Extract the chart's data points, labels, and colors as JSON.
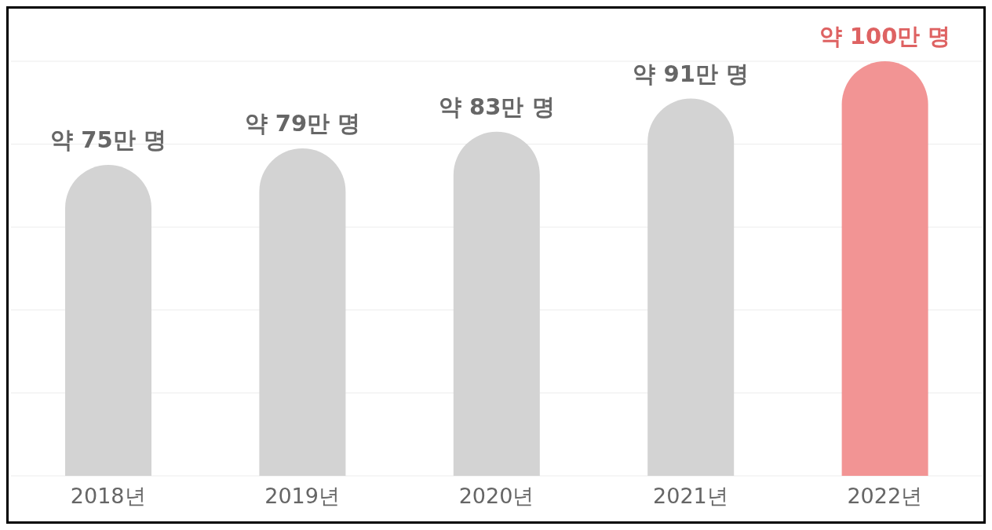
{
  "chart_data": {
    "type": "bar",
    "categories": [
      "2018년",
      "2019년",
      "2020년",
      "2021년",
      "2022년"
    ],
    "values": [
      75,
      79,
      83,
      91,
      100
    ],
    "colors": [
      "#d3d3d3",
      "#d3d3d3",
      "#d3d3d3",
      "#d3d3d3",
      "#f29494"
    ],
    "value_labels": [
      "약 75만 명",
      "약 79만 명",
      "약 83만 명",
      "약 91만 명",
      "약 100만 명"
    ],
    "ylim": [
      0,
      100
    ],
    "tick_labels": "x",
    "grid": "y"
  }
}
